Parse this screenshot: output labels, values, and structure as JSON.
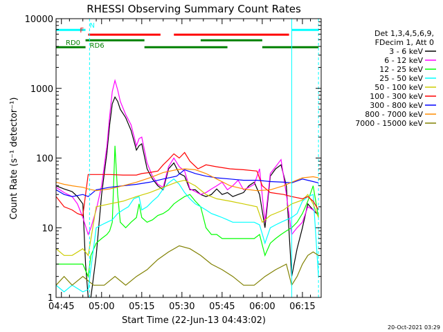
{
  "chart_data": {
    "type": "line",
    "title": "RHESSI Observing Summary Count Rates",
    "xlabel": "Start Time (22-Jun-13 04:43:02)",
    "ylabel": "Count Rate (s⁻¹ detector⁻¹)",
    "y_scale": "log",
    "ylim": [
      1,
      10000
    ],
    "xlim_minutes": [
      0,
      99
    ],
    "x_tick_labels": [
      "04:45",
      "05:00",
      "05:15",
      "05:30",
      "05:45",
      "06:00",
      "06:15"
    ],
    "x_tick_minutes": [
      2,
      17,
      32,
      47,
      62,
      77,
      92
    ],
    "y_tick_labels": [
      "1",
      "10",
      "100",
      "1000",
      "10000"
    ],
    "y_tick_values": [
      1,
      10,
      100,
      1000,
      10000
    ],
    "footer": "20-Oct-2021 03:29",
    "legend": {
      "placement": "right",
      "header_lines": [
        "Det 1,3,4,5,6,9,",
        "FDecim 1, Att 0"
      ]
    },
    "status_bars": [
      {
        "label": "N",
        "color": "#00ffff",
        "segments": [
          [
            0,
            11
          ],
          [
            88,
            98
          ]
        ],
        "y": 6900
      },
      {
        "label": "F",
        "color": "#ff0000",
        "segments": [
          [
            12,
            39
          ],
          [
            44,
            87
          ]
        ],
        "y": 5900
      },
      {
        "label": "RD0",
        "color": "#008000",
        "segments": [
          [
            0,
            11
          ],
          [
            33,
            64
          ],
          [
            77,
            98
          ]
        ],
        "y": 3900
      },
      {
        "label": "RD6",
        "color": "#008000",
        "segments": [
          [
            11,
            33
          ],
          [
            54,
            77
          ]
        ],
        "y": 4900
      }
    ],
    "dashed_markers_minutes": [
      12.5,
      98
    ],
    "solid_markers_minutes": [
      0,
      88
    ],
    "series": [
      {
        "name": "3 - 6 keV",
        "color": "#000000",
        "x": [
          0,
          3,
          6,
          8,
          10,
          11,
          12,
          13,
          15,
          17,
          19,
          20,
          21,
          22,
          23,
          24,
          26,
          28,
          30,
          31,
          32,
          34,
          36,
          38,
          40,
          42,
          44,
          46,
          48,
          50,
          52,
          54,
          56,
          58,
          60,
          62,
          64,
          66,
          68,
          70,
          72,
          74,
          76,
          78,
          80,
          82,
          84,
          86,
          88,
          90,
          92,
          94,
          96,
          98
        ],
        "y": [
          40,
          36,
          33,
          28,
          22,
          3,
          1,
          1,
          4,
          30,
          120,
          300,
          600,
          750,
          650,
          500,
          380,
          250,
          130,
          150,
          160,
          70,
          50,
          40,
          35,
          70,
          85,
          60,
          55,
          35,
          35,
          30,
          28,
          30,
          36,
          30,
          32,
          28,
          30,
          32,
          40,
          45,
          30,
          10,
          55,
          70,
          80,
          40,
          2,
          5,
          10,
          22,
          18,
          15
        ]
      },
      {
        "name": "6 - 12 keV",
        "color": "#ff00ff",
        "x": [
          0,
          3,
          6,
          8,
          10,
          12,
          13,
          15,
          17,
          19,
          20,
          21,
          22,
          23,
          24,
          26,
          28,
          30,
          31,
          32,
          34,
          36,
          38,
          40,
          42,
          44,
          46,
          48,
          50,
          52,
          54,
          56,
          58,
          60,
          62,
          64,
          66,
          68,
          70,
          72,
          74,
          76,
          78,
          80,
          82,
          84,
          86,
          88,
          90,
          92,
          94,
          96,
          98
        ],
        "y": [
          38,
          32,
          28,
          22,
          14,
          8,
          10,
          18,
          40,
          150,
          400,
          900,
          1300,
          950,
          650,
          420,
          300,
          150,
          190,
          200,
          85,
          55,
          42,
          38,
          75,
          100,
          75,
          65,
          36,
          33,
          30,
          32,
          36,
          40,
          45,
          35,
          40,
          48,
          35,
          38,
          42,
          70,
          12,
          60,
          75,
          95,
          30,
          8,
          10,
          12,
          20,
          18,
          16
        ]
      },
      {
        "name": "12 - 25 keV",
        "color": "#00ff00",
        "x": [
          0,
          3,
          6,
          10,
          12,
          13,
          15,
          17,
          19,
          20,
          21,
          22,
          23,
          24,
          26,
          28,
          30,
          31,
          32,
          34,
          36,
          38,
          40,
          42,
          44,
          46,
          48,
          50,
          52,
          54,
          56,
          58,
          60,
          62,
          64,
          66,
          68,
          70,
          72,
          74,
          76,
          78,
          80,
          82,
          84,
          86,
          88,
          90,
          92,
          94,
          96,
          98
        ],
        "y": [
          3,
          3,
          3,
          3,
          2,
          4,
          6,
          7,
          8,
          9,
          12,
          150,
          30,
          12,
          10,
          12,
          14,
          22,
          14,
          12,
          13,
          15,
          16,
          18,
          22,
          25,
          28,
          30,
          24,
          20,
          10,
          8,
          8,
          7,
          7,
          7,
          7,
          7,
          7,
          7,
          8,
          4,
          6,
          7,
          8,
          9,
          10,
          12,
          16,
          24,
          40,
          14
        ]
      },
      {
        "name": "25 - 50 keV",
        "color": "#00ffff",
        "x": [
          0,
          3,
          6,
          10,
          12,
          15,
          17,
          19,
          21,
          23,
          25,
          27,
          29,
          31,
          32,
          34,
          36,
          38,
          40,
          42,
          44,
          46,
          48,
          50,
          52,
          54,
          56,
          58,
          60,
          62,
          64,
          66,
          68,
          70,
          72,
          74,
          76,
          78,
          80,
          82,
          84,
          86,
          88,
          90,
          92,
          94,
          96,
          98
        ],
        "y": [
          1.5,
          1.2,
          1.5,
          1.2,
          1.3,
          10,
          11,
          12,
          13,
          16,
          18,
          20,
          26,
          28,
          18,
          20,
          24,
          28,
          36,
          44,
          50,
          42,
          32,
          26,
          22,
          20,
          18,
          16,
          15,
          14,
          13,
          12,
          12,
          12,
          12,
          12,
          11,
          6,
          10,
          11,
          12,
          13,
          14,
          16,
          24,
          28,
          30,
          2
        ]
      },
      {
        "name": "50 - 100 keV",
        "color": "#cccc00",
        "x": [
          0,
          3,
          6,
          10,
          12,
          15,
          20,
          25,
          30,
          35,
          40,
          45,
          48,
          52,
          56,
          60,
          65,
          70,
          75,
          77,
          80,
          85,
          88,
          92,
          94,
          96,
          98
        ],
        "y": [
          5,
          4,
          4,
          5,
          4,
          20,
          22,
          24,
          28,
          32,
          38,
          45,
          48,
          40,
          30,
          26,
          24,
          22,
          20,
          12,
          15,
          18,
          22,
          25,
          30,
          22,
          14
        ]
      },
      {
        "name": "100 - 300 keV",
        "color": "#ff0000",
        "x": [
          0,
          3,
          6,
          8,
          10,
          12,
          15,
          20,
          25,
          30,
          32,
          35,
          38,
          40,
          42,
          44,
          46,
          48,
          50,
          53,
          56,
          60,
          65,
          70,
          75,
          77,
          80,
          85,
          88,
          92,
          94,
          96,
          98
        ],
        "y": [
          28,
          20,
          18,
          16,
          15,
          58,
          58,
          58,
          57,
          57,
          60,
          62,
          65,
          80,
          95,
          115,
          100,
          120,
          90,
          70,
          80,
          75,
          70,
          68,
          65,
          40,
          32,
          30,
          28,
          26,
          28,
          24,
          18
        ]
      },
      {
        "name": "300 - 800 keV",
        "color": "#0000ff",
        "x": [
          0,
          3,
          6,
          10,
          12,
          15,
          20,
          25,
          30,
          35,
          40,
          45,
          48,
          52,
          56,
          60,
          65,
          70,
          75,
          80,
          85,
          88,
          92,
          96,
          98
        ],
        "y": [
          35,
          30,
          28,
          30,
          28,
          35,
          38,
          40,
          42,
          45,
          50,
          55,
          68,
          60,
          55,
          52,
          50,
          48,
          48,
          46,
          45,
          44,
          50,
          46,
          44
        ]
      },
      {
        "name": "800 - 7000 keV",
        "color": "#ff8c00",
        "x": [
          0,
          3,
          6,
          10,
          12,
          15,
          20,
          25,
          30,
          35,
          40,
          45,
          48,
          52,
          56,
          60,
          65,
          70,
          75,
          80,
          85,
          88,
          92,
          96,
          98
        ],
        "y": [
          45,
          42,
          40,
          38,
          36,
          34,
          36,
          40,
          45,
          52,
          62,
          68,
          70,
          68,
          60,
          50,
          40,
          36,
          34,
          35,
          40,
          45,
          52,
          54,
          52
        ]
      },
      {
        "name": "7000 - 15000 keV",
        "color": "#808000",
        "x": [
          0,
          3,
          6,
          10,
          14,
          18,
          22,
          26,
          30,
          34,
          38,
          42,
          46,
          50,
          54,
          58,
          62,
          66,
          70,
          74,
          78,
          82,
          86,
          88,
          90,
          92,
          94,
          96,
          98
        ],
        "y": [
          1.5,
          2,
          1.5,
          2,
          1.5,
          1.5,
          2,
          1.5,
          2,
          2.5,
          3.5,
          4.5,
          5.5,
          5,
          4,
          3,
          2.5,
          2,
          1.5,
          1.5,
          2,
          2.5,
          3,
          1.5,
          2,
          3,
          4,
          4.5,
          4
        ]
      }
    ]
  }
}
